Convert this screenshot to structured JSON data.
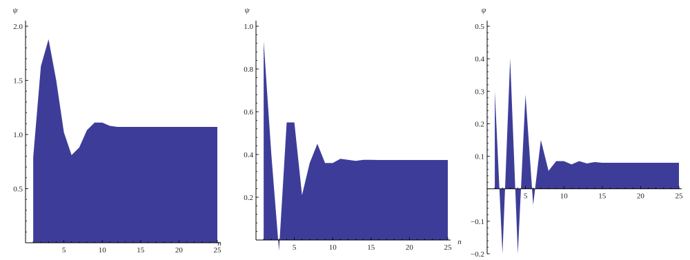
{
  "colors": {
    "fill": "#3d3d99",
    "axis": "#000000"
  },
  "chart_data": [
    {
      "type": "area",
      "xlabel": "n",
      "ylabel": "ψ",
      "xlim": [
        0,
        25
      ],
      "ylim": [
        0,
        2.0
      ],
      "xticks": [
        5,
        10,
        15,
        20,
        25
      ],
      "yticks": [
        0.5,
        1.0,
        1.5,
        2.0
      ],
      "xtick_labels": [
        "5",
        "10",
        "15",
        "20",
        "25"
      ],
      "ytick_labels": [
        "0.5",
        "1.0",
        "1.5",
        "2.0"
      ],
      "x": [
        1,
        2,
        3,
        4,
        5,
        6,
        7,
        8,
        9,
        10,
        11,
        12,
        13,
        14,
        15,
        16,
        17,
        18,
        19,
        20,
        21,
        22,
        23,
        24,
        25
      ],
      "values": [
        0.79,
        1.63,
        1.88,
        1.5,
        1.02,
        0.81,
        0.88,
        1.04,
        1.11,
        1.11,
        1.08,
        1.07,
        1.07,
        1.07,
        1.07,
        1.07,
        1.07,
        1.07,
        1.07,
        1.07,
        1.07,
        1.07,
        1.07,
        1.07,
        1.07
      ]
    },
    {
      "type": "area",
      "xlabel": "n",
      "ylabel": "ψ",
      "xlim": [
        0,
        25
      ],
      "ylim": [
        0,
        1.0
      ],
      "xticks": [
        5,
        10,
        15,
        20,
        25
      ],
      "yticks": [
        0.2,
        0.4,
        0.6,
        0.8,
        1.0
      ],
      "xtick_labels": [
        "5",
        "10",
        "15",
        "20",
        "25"
      ],
      "ytick_labels": [
        "0.2",
        "0.4",
        "0.6",
        "0.8",
        "1.0"
      ],
      "x": [
        1,
        2,
        3,
        4,
        5,
        6,
        7,
        8,
        9,
        10,
        11,
        12,
        13,
        14,
        15,
        16,
        17,
        18,
        19,
        20,
        21,
        22,
        23,
        24,
        25
      ],
      "values": [
        0.93,
        0.4,
        -0.05,
        0.55,
        0.55,
        0.21,
        0.36,
        0.45,
        0.36,
        0.36,
        0.38,
        0.375,
        0.37,
        0.375,
        0.375,
        0.374,
        0.374,
        0.374,
        0.374,
        0.374,
        0.374,
        0.374,
        0.374,
        0.374,
        0.374
      ]
    },
    {
      "type": "area",
      "xlabel": "n",
      "ylabel": "ψ",
      "xlim": [
        0,
        25
      ],
      "ylim": [
        -0.2,
        0.5
      ],
      "xticks": [
        5,
        10,
        15,
        20,
        25
      ],
      "yticks": [
        -0.2,
        -0.1,
        0.1,
        0.2,
        0.3,
        0.4,
        0.5
      ],
      "xtick_labels": [
        "5",
        "10",
        "15",
        "20",
        "25"
      ],
      "ytick_labels": [
        "−0.2",
        "−0.1",
        "0.1",
        "0.2",
        "0.3",
        "0.4",
        "0.5"
      ],
      "x": [
        1,
        2,
        3,
        4,
        5,
        6,
        7,
        8,
        9,
        10,
        11,
        12,
        13,
        14,
        15,
        16,
        17,
        18,
        19,
        20,
        21,
        22,
        23,
        24,
        25
      ],
      "values": [
        0.3,
        -0.2,
        0.4,
        -0.2,
        0.29,
        -0.05,
        0.15,
        0.055,
        0.085,
        0.085,
        0.075,
        0.085,
        0.078,
        0.082,
        0.08,
        0.08,
        0.08,
        0.08,
        0.08,
        0.08,
        0.08,
        0.08,
        0.08,
        0.08,
        0.08
      ]
    }
  ]
}
